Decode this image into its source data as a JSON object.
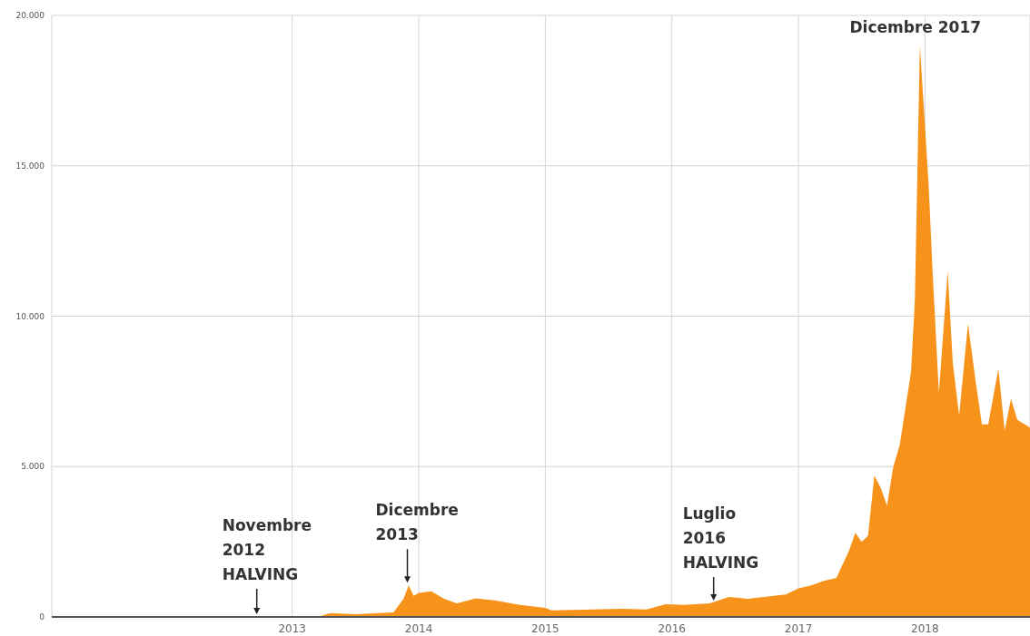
{
  "chart_data": {
    "type": "area",
    "x": [
      2011.1,
      2011.5,
      2012.0,
      2012.5,
      2012.9,
      2013.2,
      2013.3,
      2013.5,
      2013.8,
      2013.88,
      2013.92,
      2013.96,
      2014.0,
      2014.1,
      2014.2,
      2014.3,
      2014.45,
      2014.6,
      2014.8,
      2015.0,
      2015.05,
      2015.3,
      2015.6,
      2015.8,
      2015.95,
      2016.1,
      2016.3,
      2016.45,
      2016.6,
      2016.9,
      2017.0,
      2017.1,
      2017.2,
      2017.3,
      2017.4,
      2017.45,
      2017.5,
      2017.55,
      2017.6,
      2017.65,
      2017.7,
      2017.75,
      2017.8,
      2017.89,
      2017.92,
      2017.96,
      2017.99,
      2018.03,
      2018.06,
      2018.11,
      2018.18,
      2018.22,
      2018.27,
      2018.34,
      2018.4,
      2018.45,
      2018.5,
      2018.58,
      2018.63,
      2018.68,
      2018.73,
      2018.83
    ],
    "series": [
      {
        "color": "#f7931a",
        "values": [
          0,
          0,
          0,
          0,
          0,
          0,
          130,
          90,
          150,
          600,
          1050,
          700,
          800,
          850,
          600,
          450,
          620,
          550,
          400,
          300,
          220,
          240,
          270,
          250,
          420,
          400,
          450,
          660,
          600,
          750,
          950,
          1050,
          1200,
          1300,
          2200,
          2800,
          2500,
          2700,
          4700,
          4300,
          3700,
          5000,
          5700,
          8150,
          10500,
          19000,
          17000,
          14300,
          11500,
          7450,
          11500,
          8450,
          6700,
          9750,
          7850,
          6400,
          6400,
          8250,
          6200,
          7250,
          6550,
          6300
        ]
      }
    ],
    "xlim": [
      2011.1,
      2018.83
    ],
    "xticks": [
      2013,
      2014,
      2015,
      2016,
      2017,
      2018
    ],
    "ylim": [
      0,
      20000
    ],
    "yticks": [
      {
        "value": 0,
        "label": "0"
      },
      {
        "value": 5000,
        "label": "5.000"
      },
      {
        "value": 10000,
        "label": "10.000"
      },
      {
        "value": 15000,
        "label": "15.000"
      },
      {
        "value": 20000,
        "label": "20.000"
      }
    ],
    "grid": true,
    "annotations": [
      {
        "text": "Novembre\n2012\nHALVING",
        "x": 2012.72,
        "y": 0
      },
      {
        "text": "Dicembre\n2013",
        "x": 2013.91,
        "y": 1050
      },
      {
        "text": "Luglio\n2016\nHALVING",
        "x": 2016.33,
        "y": 450
      },
      {
        "text": "Dicembre 2017",
        "x": 2017.96,
        "y": 19000
      }
    ]
  }
}
